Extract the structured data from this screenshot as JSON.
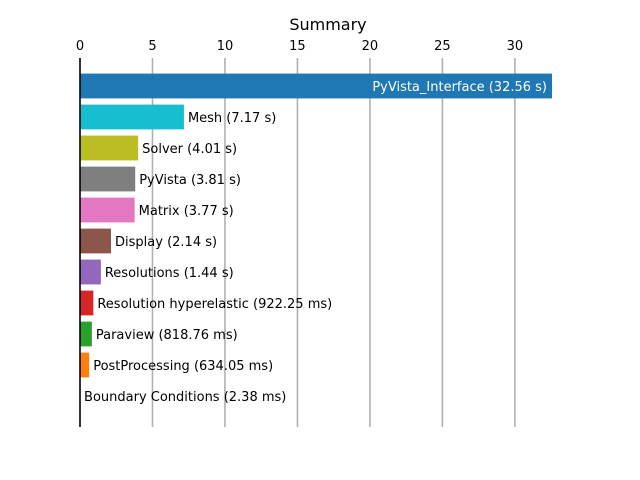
{
  "chart_data": {
    "type": "bar",
    "orientation": "horizontal",
    "title": "Summary",
    "xlabel": "",
    "ylabel": "",
    "xaxis_position": "top",
    "xlim": [
      0,
      32.56
    ],
    "xticks": [
      0,
      5,
      10,
      15,
      20,
      25,
      30
    ],
    "grid": "vertical",
    "bars": [
      {
        "label": "PyVista_Interface (32.56 s)",
        "value": 32.56,
        "color": "#1f77b4",
        "label_inside": true
      },
      {
        "label": "Mesh (7.17 s)",
        "value": 7.17,
        "color": "#17becf"
      },
      {
        "label": "Solver (4.01 s)",
        "value": 4.01,
        "color": "#bcbd22"
      },
      {
        "label": "PyVista (3.81 s)",
        "value": 3.81,
        "color": "#7f7f7f"
      },
      {
        "label": "Matrix (3.77 s)",
        "value": 3.77,
        "color": "#e377c2"
      },
      {
        "label": "Display (2.14 s)",
        "value": 2.14,
        "color": "#8c564b"
      },
      {
        "label": "Resolutions (1.44 s)",
        "value": 1.44,
        "color": "#9467bd"
      },
      {
        "label": "Resolution hyperelastic (922.25 ms)",
        "value": 0.92225,
        "color": "#d62728"
      },
      {
        "label": "Paraview (818.76 ms)",
        "value": 0.81876,
        "color": "#2ca02c"
      },
      {
        "label": "PostProcessing (634.05 ms)",
        "value": 0.63405,
        "color": "#ff7f0e"
      },
      {
        "label": "Boundary Conditions (2.38 ms)",
        "value": 0.00238,
        "color": "#1f77b4"
      }
    ]
  }
}
